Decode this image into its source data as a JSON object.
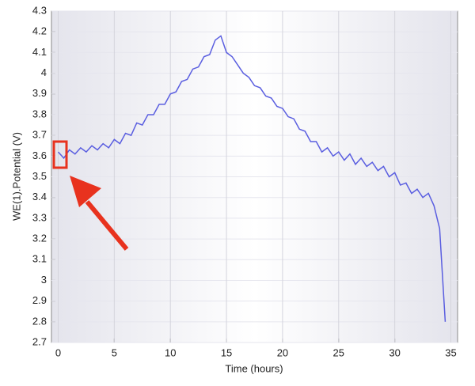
{
  "chart_data": {
    "type": "line",
    "x_label": "Time (hours)",
    "y_label": "WE(1).Potential (V)",
    "x": [
      0,
      0.5,
      1,
      1.5,
      2,
      2.5,
      3,
      3.5,
      4,
      4.5,
      5,
      5.5,
      6,
      6.5,
      7,
      7.5,
      8,
      8.5,
      9,
      9.5,
      10,
      10.5,
      11,
      11.5,
      12,
      12.5,
      13,
      13.5,
      14,
      14.5,
      15,
      15.5,
      16,
      16.5,
      17,
      17.5,
      18,
      18.5,
      19,
      19.5,
      20,
      20.5,
      21,
      21.5,
      22,
      22.5,
      23,
      23.5,
      24,
      24.5,
      25,
      25.5,
      26,
      26.5,
      27,
      27.5,
      28,
      28.5,
      29,
      29.5,
      30,
      30.5,
      31,
      31.5,
      32,
      32.5,
      33,
      33.5,
      34,
      34.5
    ],
    "series": [
      {
        "color": "#5a5ee0",
        "values": [
          3.62,
          3.59,
          3.63,
          3.61,
          3.64,
          3.62,
          3.65,
          3.63,
          3.66,
          3.64,
          3.68,
          3.66,
          3.71,
          3.7,
          3.76,
          3.75,
          3.8,
          3.8,
          3.85,
          3.85,
          3.9,
          3.91,
          3.96,
          3.97,
          4.02,
          4.03,
          4.08,
          4.09,
          4.16,
          4.18,
          4.1,
          4.08,
          4.04,
          4.0,
          3.98,
          3.94,
          3.93,
          3.89,
          3.88,
          3.84,
          3.83,
          3.79,
          3.78,
          3.73,
          3.72,
          3.67,
          3.67,
          3.62,
          3.64,
          3.6,
          3.62,
          3.58,
          3.61,
          3.56,
          3.59,
          3.55,
          3.57,
          3.53,
          3.55,
          3.5,
          3.52,
          3.46,
          3.47,
          3.42,
          3.44,
          3.4,
          3.42,
          3.36,
          3.25,
          2.8
        ]
      }
    ],
    "xlim": [
      -0.6,
      35.6
    ],
    "xticks": [
      0,
      5,
      10,
      15,
      20,
      25,
      30,
      35
    ],
    "ylim": [
      2.7,
      4.3
    ],
    "yticks": [
      2.7,
      2.8,
      2.9,
      3,
      3.1,
      3.2,
      3.3,
      3.4,
      3.5,
      3.6,
      3.7,
      3.8,
      3.9,
      4,
      4.1,
      4.2,
      4.3
    ],
    "grid": true
  }
}
